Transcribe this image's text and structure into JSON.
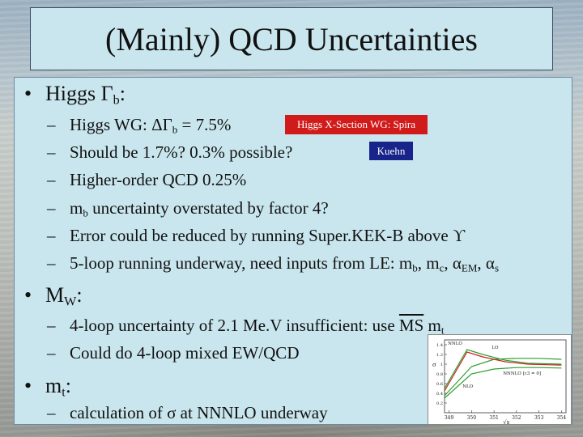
{
  "title": "(Mainly) QCD Uncertainties",
  "bullets": {
    "higgs": {
      "marker": "•",
      "label": "Higgs Γ",
      "sub": "b",
      "suffix": ":",
      "items": [
        {
          "dash": "–",
          "pre": "Higgs WG: ΔΓ",
          "sub": "b",
          "post": " = 7.5%"
        },
        {
          "dash": "–",
          "text": "Should be 1.7%? 0.3% possible?"
        },
        {
          "dash": "–",
          "text": "Higher-order QCD 0.25%"
        },
        {
          "dash": "–",
          "pre": "m",
          "sub": "b",
          "post": " uncertainty overstated by factor 4?"
        },
        {
          "dash": "–",
          "text": "Error could be reduced by running Super.KEK-B above ϒ"
        },
        {
          "dash": "–",
          "pre": "5-loop running underway, need inputs from LE: m",
          "sub1": "b",
          "mid1": ", m",
          "sub2": "c",
          "mid2": ", α",
          "sub3": "EM",
          "mid3": ", α",
          "sub4": "s"
        }
      ]
    },
    "mw": {
      "marker": "•",
      "label": "M",
      "sub": "W",
      "suffix": ":",
      "items": [
        {
          "dash": "–",
          "pre": "4-loop uncertainty of 2.1 Me.V insufficient: use ",
          "over": "MS",
          "post": " m",
          "sub": "t"
        },
        {
          "dash": "–",
          "text": "Could do 4-loop mixed EW/QCD"
        }
      ]
    },
    "mt": {
      "marker": "•",
      "label": "m",
      "sub": "t",
      "suffix": ":",
      "items": [
        {
          "dash": "–",
          "text": "calculation of σ at NNNLO underway"
        }
      ]
    }
  },
  "tags": {
    "red": "Higgs X-Section WG: Spira",
    "blue": "Kuehn"
  },
  "chart_data": {
    "type": "line",
    "title": "",
    "xlabel": "√s",
    "ylabel": "σ",
    "x_ticks": [
      "349",
      "350",
      "351",
      "352",
      "353",
      "354"
    ],
    "y_ticks": [
      "1.4",
      "1.2",
      "1",
      "0.8",
      "0.6",
      "0.4",
      "0.2"
    ],
    "series": [
      {
        "name": "LO",
        "color": "#2e9e2e",
        "x": [
          348.8,
          350,
          351,
          352,
          353,
          354
        ],
        "y": [
          0.35,
          0.95,
          1.1,
          1.12,
          1.12,
          1.1
        ]
      },
      {
        "name": "NLO",
        "color": "#2e9e2e",
        "x": [
          348.8,
          350,
          351,
          352,
          353,
          354
        ],
        "y": [
          0.3,
          0.8,
          0.9,
          0.93,
          0.93,
          0.92
        ]
      },
      {
        "name": "NNLO",
        "color": "#2e9e2e",
        "x": [
          348.8,
          349.8,
          350.5,
          351.5,
          352.5,
          354
        ],
        "y": [
          0.5,
          1.3,
          1.2,
          1.08,
          1.02,
          1.0
        ]
      },
      {
        "name": "NNNLO [c3 = 0]",
        "color": "#cc2222",
        "x": [
          348.8,
          349.8,
          350.5,
          351.5,
          352.5,
          354
        ],
        "y": [
          0.45,
          1.25,
          1.15,
          1.05,
          1.0,
          0.98
        ]
      }
    ],
    "xlim": [
      348.8,
      354.2
    ],
    "ylim": [
      0,
      1.5
    ]
  }
}
